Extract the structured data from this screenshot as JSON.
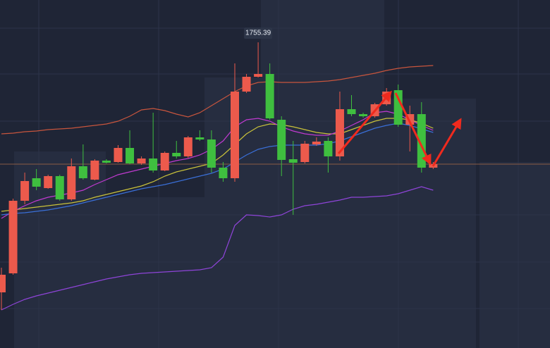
{
  "chart_data": {
    "type": "candlestick",
    "annotation": "1755.39",
    "up_color": "#ec5a4c",
    "down_color": "#3fbf3f",
    "ylim": [
      1712,
      1761.4
    ],
    "open": [
      1719.9,
      1722.6,
      1732.9,
      1736.1,
      1734.7,
      1736.4,
      1733.1,
      1737.8,
      1735.9,
      1738.6,
      1738.4,
      1740.4,
      1738.2,
      1738.9,
      1737.2,
      1739.7,
      1739.2,
      1741.9,
      1741.6,
      1737.6,
      1736.1,
      1748.4,
      1750.5,
      1750.9,
      1744.4,
      1738.8,
      1738.4,
      1740.9,
      1741.4,
      1739.2,
      1745.9,
      1745.2,
      1744.9,
      1746.6,
      1748.6,
      1743.7,
      1745.2,
      1737.6
    ],
    "high": [
      1723.4,
      1733.2,
      1736.9,
      1737.4,
      1736.6,
      1736.6,
      1738.9,
      1740.9,
      1738.8,
      1738.8,
      1740.8,
      1742.9,
      1739.2,
      1745.4,
      1739.9,
      1741.4,
      1742.1,
      1742.9,
      1742.9,
      1738.4,
      1752.4,
      1750.9,
      1755.39,
      1752.4,
      1744.9,
      1741.4,
      1741.4,
      1741.9,
      1741.9,
      1748.4,
      1747.9,
      1745.4,
      1746.8,
      1748.9,
      1749.4,
      1746.4,
      1746.9,
      1738.4
    ],
    "low": [
      1717.4,
      1722.4,
      1732.4,
      1734.4,
      1734.6,
      1732.9,
      1732.9,
      1735.9,
      1735.8,
      1738.2,
      1738.3,
      1738.1,
      1738.0,
      1736.9,
      1737.1,
      1738.9,
      1739.0,
      1741.4,
      1736.9,
      1735.6,
      1735.6,
      1748.2,
      1750.4,
      1744.4,
      1736.4,
      1730.9,
      1738.2,
      1740.7,
      1736.9,
      1738.6,
      1744.9,
      1744.7,
      1744.7,
      1746.4,
      1743.4,
      1739.9,
      1736.9,
      1737.4
    ],
    "close": [
      1722.4,
      1732.9,
      1735.7,
      1734.9,
      1736.4,
      1733.1,
      1737.8,
      1736.1,
      1738.6,
      1738.3,
      1740.4,
      1738.2,
      1738.9,
      1737.2,
      1739.7,
      1739.2,
      1741.9,
      1741.6,
      1737.6,
      1736.1,
      1748.4,
      1750.5,
      1750.9,
      1744.6,
      1738.7,
      1738.3,
      1741.0,
      1741.3,
      1739.2,
      1745.9,
      1745.2,
      1744.9,
      1746.6,
      1748.4,
      1743.7,
      1745.2,
      1737.6,
      1738.1
    ],
    "series": [
      {
        "color": "#c8553d",
        "values": [
          1742.4,
          1742.5,
          1742.7,
          1742.8,
          1743.0,
          1743.1,
          1743.2,
          1743.4,
          1743.6,
          1743.8,
          1744.2,
          1744.9,
          1745.8,
          1746.0,
          1745.7,
          1745.2,
          1744.8,
          1745.4,
          1746.4,
          1747.4,
          1748.4,
          1749.2,
          1749.7,
          1749.8,
          1749.7,
          1749.7,
          1749.7,
          1749.8,
          1749.9,
          1750.1,
          1750.4,
          1750.7,
          1751.0,
          1751.4,
          1751.7,
          1751.9,
          1752.0,
          1752.1
        ]
      },
      {
        "color": "#8e44d8",
        "values": [
          1717.4,
          1718.2,
          1718.9,
          1719.4,
          1719.8,
          1720.2,
          1720.6,
          1721.0,
          1721.4,
          1721.8,
          1722.1,
          1722.4,
          1722.6,
          1722.7,
          1722.8,
          1722.9,
          1723.0,
          1723.1,
          1723.4,
          1724.9,
          1729.4,
          1730.9,
          1730.8,
          1730.6,
          1730.9,
          1731.7,
          1732.2,
          1732.4,
          1732.7,
          1733.0,
          1733.4,
          1733.4,
          1733.5,
          1733.6,
          1733.9,
          1734.4,
          1734.9,
          1734.4
        ]
      },
      {
        "color": "#c9c23a",
        "values": [
          1731.4,
          1731.6,
          1731.8,
          1732.0,
          1732.2,
          1732.4,
          1732.6,
          1732.9,
          1733.4,
          1733.8,
          1734.2,
          1734.6,
          1735.0,
          1735.6,
          1736.4,
          1737.0,
          1737.4,
          1737.8,
          1738.2,
          1739.4,
          1740.9,
          1742.4,
          1743.4,
          1743.8,
          1743.7,
          1743.4,
          1743.0,
          1742.6,
          1742.4,
          1742.4,
          1743.0,
          1743.6,
          1744.2,
          1744.6,
          1744.6,
          1744.4,
          1743.9,
          1743.2
        ]
      },
      {
        "color": "#c03ad0",
        "values": [
          1730.4,
          1731.4,
          1732.2,
          1732.9,
          1733.4,
          1733.7,
          1734.0,
          1734.4,
          1735.2,
          1735.9,
          1736.6,
          1737.0,
          1737.4,
          1737.8,
          1738.2,
          1738.6,
          1738.9,
          1739.4,
          1740.2,
          1741.4,
          1743.4,
          1744.4,
          1744.6,
          1744.2,
          1743.4,
          1742.8,
          1742.4,
          1742.2,
          1742.2,
          1742.8,
          1743.6,
          1744.4,
          1745.4,
          1745.6,
          1745.2,
          1744.4,
          1743.6,
          1742.9
        ]
      },
      {
        "color": "#3a6fd8",
        "values": [
          1730.9,
          1731.1,
          1731.2,
          1731.4,
          1731.6,
          1731.9,
          1732.2,
          1732.6,
          1733.0,
          1733.4,
          1733.8,
          1734.2,
          1734.6,
          1734.9,
          1735.2,
          1735.6,
          1736.0,
          1736.4,
          1736.8,
          1737.4,
          1738.4,
          1739.4,
          1740.2,
          1740.6,
          1740.8,
          1740.8,
          1740.8,
          1740.8,
          1741.0,
          1741.4,
          1742.0,
          1742.6,
          1743.2,
          1743.6,
          1743.9,
          1743.6,
          1743.1,
          1742.6
        ]
      }
    ]
  }
}
